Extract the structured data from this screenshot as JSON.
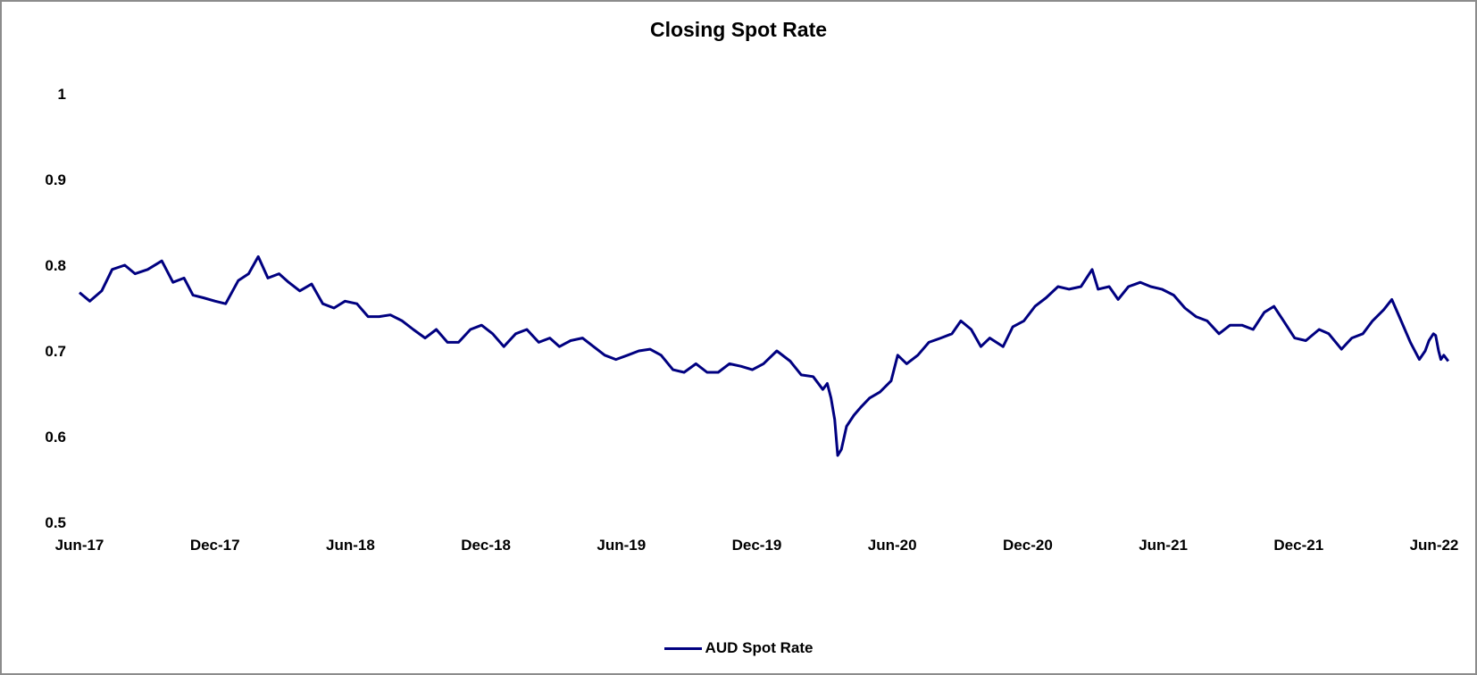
{
  "colors": {
    "series_line": "#000080"
  },
  "chart_data": {
    "type": "line",
    "title": "Closing Spot Rate",
    "xlabel": "",
    "ylabel": "",
    "x_ticks": [
      "Jun-17",
      "Dec-17",
      "Jun-18",
      "Dec-18",
      "Jun-19",
      "Dec-19",
      "Jun-20",
      "Dec-20",
      "Jun-21",
      "Dec-21",
      "Jun-22"
    ],
    "y_ticks": [
      "0.5",
      "0.6",
      "0.7",
      "0.8",
      "0.9",
      "1"
    ],
    "ylim": [
      0.5,
      1.0
    ],
    "xlim": [
      "2017-06-01",
      "2022-06-01"
    ],
    "grid": false,
    "legend_position": "bottom",
    "series": [
      {
        "name": "AUD Spot Rate",
        "points": [
          [
            "2017-06-01",
            0.768
          ],
          [
            "2017-06-15",
            0.758
          ],
          [
            "2017-07-01",
            0.77
          ],
          [
            "2017-07-15",
            0.795
          ],
          [
            "2017-08-01",
            0.8
          ],
          [
            "2017-08-15",
            0.79
          ],
          [
            "2017-09-01",
            0.795
          ],
          [
            "2017-09-20",
            0.805
          ],
          [
            "2017-10-05",
            0.78
          ],
          [
            "2017-10-20",
            0.785
          ],
          [
            "2017-11-01",
            0.765
          ],
          [
            "2017-11-15",
            0.762
          ],
          [
            "2017-12-01",
            0.758
          ],
          [
            "2017-12-15",
            0.755
          ],
          [
            "2018-01-01",
            0.782
          ],
          [
            "2018-01-15",
            0.79
          ],
          [
            "2018-01-28",
            0.81
          ],
          [
            "2018-02-10",
            0.785
          ],
          [
            "2018-02-25",
            0.79
          ],
          [
            "2018-03-10",
            0.78
          ],
          [
            "2018-03-25",
            0.77
          ],
          [
            "2018-04-10",
            0.778
          ],
          [
            "2018-04-25",
            0.755
          ],
          [
            "2018-05-10",
            0.75
          ],
          [
            "2018-05-25",
            0.758
          ],
          [
            "2018-06-10",
            0.755
          ],
          [
            "2018-06-25",
            0.74
          ],
          [
            "2018-07-10",
            0.74
          ],
          [
            "2018-07-25",
            0.742
          ],
          [
            "2018-08-10",
            0.735
          ],
          [
            "2018-08-25",
            0.725
          ],
          [
            "2018-09-10",
            0.715
          ],
          [
            "2018-09-25",
            0.725
          ],
          [
            "2018-10-10",
            0.71
          ],
          [
            "2018-10-25",
            0.71
          ],
          [
            "2018-11-10",
            0.725
          ],
          [
            "2018-11-25",
            0.73
          ],
          [
            "2018-12-10",
            0.72
          ],
          [
            "2018-12-25",
            0.705
          ],
          [
            "2019-01-10",
            0.72
          ],
          [
            "2019-01-25",
            0.725
          ],
          [
            "2019-02-10",
            0.71
          ],
          [
            "2019-02-25",
            0.715
          ],
          [
            "2019-03-10",
            0.705
          ],
          [
            "2019-03-25",
            0.712
          ],
          [
            "2019-04-10",
            0.715
          ],
          [
            "2019-04-25",
            0.705
          ],
          [
            "2019-05-10",
            0.695
          ],
          [
            "2019-05-25",
            0.69
          ],
          [
            "2019-06-10",
            0.695
          ],
          [
            "2019-06-25",
            0.7
          ],
          [
            "2019-07-10",
            0.702
          ],
          [
            "2019-07-25",
            0.695
          ],
          [
            "2019-08-10",
            0.678
          ],
          [
            "2019-08-25",
            0.675
          ],
          [
            "2019-09-10",
            0.685
          ],
          [
            "2019-09-25",
            0.675
          ],
          [
            "2019-10-10",
            0.675
          ],
          [
            "2019-10-25",
            0.685
          ],
          [
            "2019-11-10",
            0.682
          ],
          [
            "2019-11-25",
            0.678
          ],
          [
            "2019-12-10",
            0.685
          ],
          [
            "2019-12-28",
            0.7
          ],
          [
            "2020-01-15",
            0.688
          ],
          [
            "2020-01-30",
            0.672
          ],
          [
            "2020-02-15",
            0.67
          ],
          [
            "2020-02-28",
            0.655
          ],
          [
            "2020-03-05",
            0.662
          ],
          [
            "2020-03-10",
            0.645
          ],
          [
            "2020-03-15",
            0.62
          ],
          [
            "2020-03-19",
            0.578
          ],
          [
            "2020-03-24",
            0.585
          ],
          [
            "2020-03-31",
            0.612
          ],
          [
            "2020-04-10",
            0.625
          ],
          [
            "2020-04-20",
            0.635
          ],
          [
            "2020-05-01",
            0.645
          ],
          [
            "2020-05-15",
            0.652
          ],
          [
            "2020-05-30",
            0.665
          ],
          [
            "2020-06-08",
            0.695
          ],
          [
            "2020-06-20",
            0.685
          ],
          [
            "2020-07-05",
            0.695
          ],
          [
            "2020-07-20",
            0.71
          ],
          [
            "2020-08-05",
            0.715
          ],
          [
            "2020-08-20",
            0.72
          ],
          [
            "2020-09-01",
            0.735
          ],
          [
            "2020-09-15",
            0.725
          ],
          [
            "2020-09-28",
            0.705
          ],
          [
            "2020-10-10",
            0.715
          ],
          [
            "2020-10-28",
            0.705
          ],
          [
            "2020-11-10",
            0.728
          ],
          [
            "2020-11-25",
            0.735
          ],
          [
            "2020-12-10",
            0.752
          ],
          [
            "2020-12-25",
            0.762
          ],
          [
            "2021-01-10",
            0.775
          ],
          [
            "2021-01-25",
            0.772
          ],
          [
            "2021-02-10",
            0.775
          ],
          [
            "2021-02-25",
            0.795
          ],
          [
            "2021-03-05",
            0.772
          ],
          [
            "2021-03-20",
            0.775
          ],
          [
            "2021-04-01",
            0.76
          ],
          [
            "2021-04-15",
            0.775
          ],
          [
            "2021-05-01",
            0.78
          ],
          [
            "2021-05-15",
            0.775
          ],
          [
            "2021-05-30",
            0.772
          ],
          [
            "2021-06-15",
            0.765
          ],
          [
            "2021-06-30",
            0.75
          ],
          [
            "2021-07-15",
            0.74
          ],
          [
            "2021-07-30",
            0.735
          ],
          [
            "2021-08-15",
            0.72
          ],
          [
            "2021-08-30",
            0.73
          ],
          [
            "2021-09-15",
            0.73
          ],
          [
            "2021-09-30",
            0.725
          ],
          [
            "2021-10-15",
            0.745
          ],
          [
            "2021-10-28",
            0.752
          ],
          [
            "2021-11-10",
            0.735
          ],
          [
            "2021-11-25",
            0.715
          ],
          [
            "2021-12-10",
            0.712
          ],
          [
            "2021-12-28",
            0.725
          ],
          [
            "2022-01-10",
            0.72
          ],
          [
            "2022-01-27",
            0.702
          ],
          [
            "2022-02-10",
            0.715
          ],
          [
            "2022-02-25",
            0.72
          ],
          [
            "2022-03-10",
            0.735
          ],
          [
            "2022-03-25",
            0.748
          ],
          [
            "2022-04-05",
            0.76
          ],
          [
            "2022-04-15",
            0.74
          ],
          [
            "2022-04-30",
            0.71
          ],
          [
            "2022-05-12",
            0.69
          ],
          [
            "2022-05-20",
            0.7
          ],
          [
            "2022-05-25",
            0.712
          ],
          [
            "2022-05-31",
            0.72
          ],
          [
            "2022-06-03",
            0.718
          ],
          [
            "2022-06-07",
            0.7
          ],
          [
            "2022-06-10",
            0.69
          ],
          [
            "2022-06-14",
            0.695
          ],
          [
            "2022-06-20",
            0.688
          ]
        ]
      }
    ]
  }
}
